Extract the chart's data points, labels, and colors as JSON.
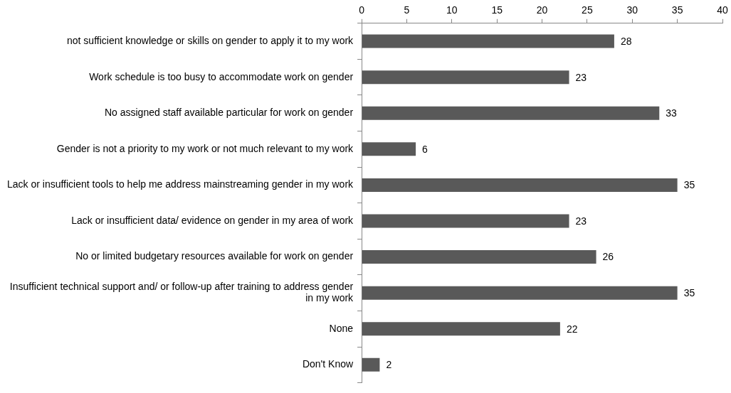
{
  "chart_data": {
    "type": "bar",
    "orientation": "horizontal",
    "categories": [
      "not sufficient knowledge or skills on gender to apply it to my work",
      "Work schedule is too busy to accommodate work on gender",
      "No assigned staff available particular for work on gender",
      "Gender is not a priority to my work or not much relevant to my work",
      "Lack or insufficient tools to help me address mainstreaming gender in my work",
      "Lack or insufficient data/ evidence on gender in my area of work",
      "No or limited budgetary resources available for work on gender",
      "Insufficient technical support and/ or follow-up after training to address gender in my work",
      "None",
      "Don't Know"
    ],
    "values": [
      28,
      23,
      33,
      6,
      35,
      23,
      26,
      35,
      22,
      2
    ],
    "color": "#595959",
    "xlim": [
      0,
      40
    ],
    "xticks": [
      0,
      5,
      10,
      15,
      20,
      25,
      30,
      35,
      40
    ],
    "data_labels": true,
    "grid": false,
    "legend": false
  }
}
